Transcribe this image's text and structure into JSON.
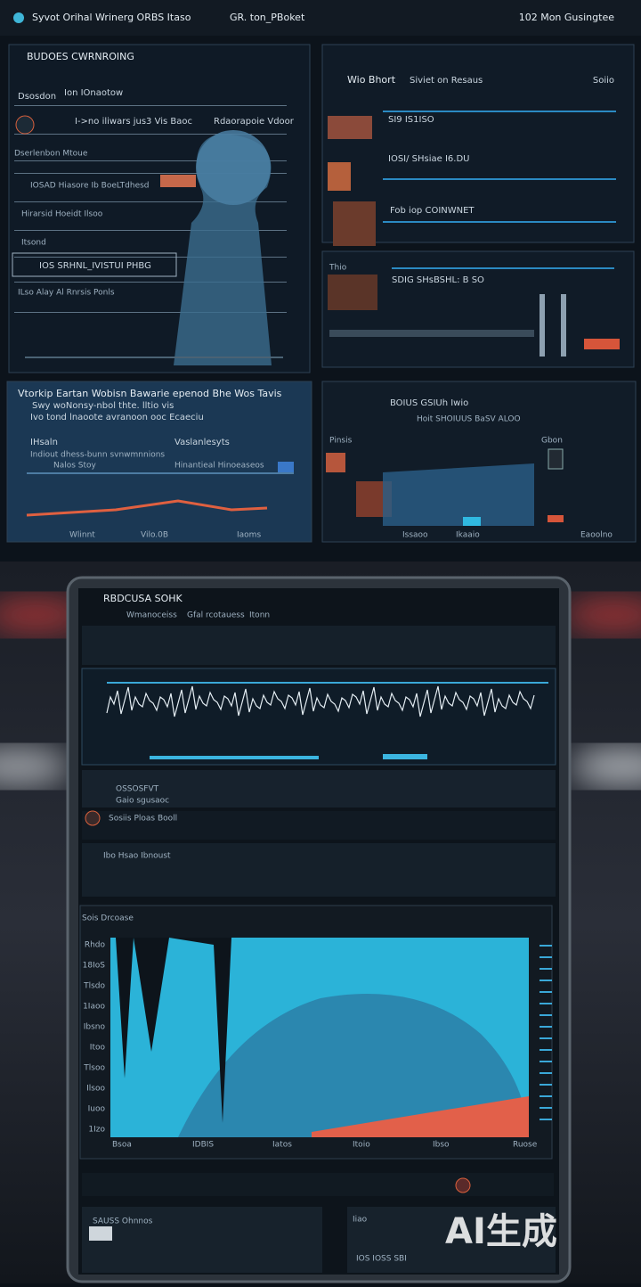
{
  "header": {
    "title": "Syvot Orihal Wrinerg ORBS Itaso",
    "tab": "GR. ton_PBoket",
    "status": "102 Mon Gusingtee"
  },
  "panels": [
    {
      "title": "BUDOES CWRNROING",
      "lines": [
        "Dsosdon",
        "Ion IOnaotow",
        "I->no iliwars jus3 Vis Baoc",
        "Rdaorapoie Vdoor",
        "Dserlenbon Mtoue",
        "IOSAD Hiasore Ib BoeLTdhesd",
        "Hirarsid Hoeidt Ilsoo",
        "Itsond",
        "IOS SRHNL_IVISTUI PHBG",
        "ILso Alay Al Rnrsis Ponls"
      ]
    },
    {
      "title": "Wio Bhort",
      "lines": [
        "Siviet on Resaus",
        "Soiio",
        "SI9 IS1ISO",
        "IOSI/ SHsiae I6.DU",
        "Fob iop COINWNET"
      ]
    },
    {
      "title": "Thio",
      "lines": [
        "SDIG SHsBSHL: B SO"
      ]
    },
    {
      "title": "Vtorkip Eartan Wobisn Bawarie epenod Bhe Wos Tavis",
      "lines": [
        "Swy woNonsy-nbol thte. lltio vis",
        "Ivo tond lnaoote avranoon ooc Ecaeciu",
        "IHsaln",
        "Vaslanlesyts",
        "Indiout dhess-bunn svnwmnnions",
        "Hinantieal Hinoeaseos",
        "Nalos Stoy",
        "Wlinnt",
        "Vilo.0B",
        "Iaoms"
      ]
    },
    {
      "title": "BOIUS GSIUh Iwio",
      "lines": [
        "Hoit SHOIUUS BaSV ALOO",
        "Pinsis",
        "Gbon",
        "Issaoo",
        "Ikaaio",
        "Eaoolno"
      ]
    }
  ],
  "tablet": {
    "title": "RBDCUSA SOHK",
    "tabs": [
      "Wmanoceiss",
      "Gfal rcotauess",
      "Itonn"
    ],
    "rows": [
      "OSSOSFVT",
      "Gaio sgusaoc",
      "Sosiis Ploas Booll",
      "Ibo Hsao Ibnoust"
    ],
    "chart_title": "Sois Drcoase",
    "ylabels": [
      "Rhdo",
      "18IoS",
      "Tlsdo",
      "1Iaoo",
      "Ibsno",
      "Itoo",
      "Tlsoo",
      "Ilsoo",
      "Iuoo",
      "1Izo"
    ],
    "xlabels": [
      "Bsoa",
      "IDBIS",
      "Iatos",
      "Itoio",
      "Ibso",
      "Ruose"
    ],
    "bottom": [
      "SAUSS Ohnnos",
      "Iiao",
      "IOS IOSS SBI"
    ]
  },
  "watermark": "AI生成"
}
